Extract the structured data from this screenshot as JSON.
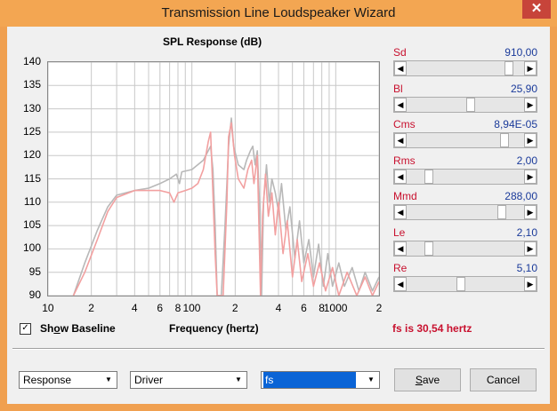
{
  "window": {
    "title": "Transmission Line Loudspeaker Wizard",
    "close_glyph": "✕"
  },
  "chart_data": {
    "type": "line",
    "title": "SPL Response (dB)",
    "xlabel": "Frequency (hertz)",
    "ylabel": "",
    "xscale": "log",
    "xlim": [
      10,
      2000
    ],
    "ylim": [
      90,
      140
    ],
    "y_ticks": [
      "140",
      "135",
      "130",
      "125",
      "120",
      "115",
      "110",
      "105",
      "100",
      "95",
      "90"
    ],
    "x_ticks": [
      "10",
      "2",
      "4",
      "6",
      "8",
      "100",
      "2",
      "4",
      "6",
      "8",
      "1000",
      "2"
    ],
    "grid": true,
    "series": [
      {
        "color": "#b8b8b8",
        "points": [
          [
            15,
            90
          ],
          [
            18,
            97
          ],
          [
            22,
            104
          ],
          [
            26,
            109
          ],
          [
            30,
            111.5
          ],
          [
            40,
            112.5
          ],
          [
            50,
            113
          ],
          [
            60,
            114
          ],
          [
            70,
            115
          ],
          [
            78,
            116
          ],
          [
            82,
            114
          ],
          [
            85,
            116.5
          ],
          [
            100,
            117
          ],
          [
            120,
            119
          ],
          [
            135,
            122
          ],
          [
            140,
            117
          ],
          [
            145,
            105
          ],
          [
            150,
            90
          ],
          [
            160,
            90
          ],
          [
            170,
            105
          ],
          [
            180,
            122
          ],
          [
            188,
            128
          ],
          [
            195,
            122
          ],
          [
            210,
            118
          ],
          [
            230,
            117
          ],
          [
            240,
            119
          ],
          [
            255,
            121
          ],
          [
            265,
            122
          ],
          [
            275,
            118
          ],
          [
            285,
            121
          ],
          [
            295,
            110
          ],
          [
            305,
            90
          ],
          [
            315,
            110
          ],
          [
            330,
            118
          ],
          [
            345,
            110
          ],
          [
            360,
            115
          ],
          [
            380,
            112
          ],
          [
            400,
            108
          ],
          [
            420,
            114
          ],
          [
            450,
            104
          ],
          [
            480,
            109
          ],
          [
            520,
            98
          ],
          [
            560,
            106
          ],
          [
            600,
            97
          ],
          [
            650,
            102
          ],
          [
            700,
            94
          ],
          [
            760,
            101
          ],
          [
            820,
            92
          ],
          [
            880,
            99
          ],
          [
            950,
            92
          ],
          [
            1050,
            97
          ],
          [
            1150,
            92
          ],
          [
            1300,
            96
          ],
          [
            1450,
            91
          ],
          [
            1600,
            95
          ],
          [
            1800,
            91
          ],
          [
            2000,
            94
          ]
        ]
      },
      {
        "color": "#f2a0a0",
        "points": [
          [
            15,
            90
          ],
          [
            18,
            95
          ],
          [
            22,
            102
          ],
          [
            26,
            108
          ],
          [
            30,
            111
          ],
          [
            40,
            112.5
          ],
          [
            60,
            112.5
          ],
          [
            70,
            112
          ],
          [
            75,
            110
          ],
          [
            80,
            112
          ],
          [
            90,
            112.5
          ],
          [
            100,
            113
          ],
          [
            110,
            114
          ],
          [
            120,
            117
          ],
          [
            130,
            123
          ],
          [
            135,
            125
          ],
          [
            140,
            112
          ],
          [
            145,
            99
          ],
          [
            150,
            90
          ],
          [
            165,
            90
          ],
          [
            175,
            110
          ],
          [
            180,
            124
          ],
          [
            188,
            127
          ],
          [
            198,
            120
          ],
          [
            210,
            115
          ],
          [
            230,
            113
          ],
          [
            245,
            117
          ],
          [
            260,
            119
          ],
          [
            270,
            114
          ],
          [
            285,
            120
          ],
          [
            300,
            90
          ],
          [
            310,
            107
          ],
          [
            325,
            116
          ],
          [
            340,
            107
          ],
          [
            360,
            112
          ],
          [
            380,
            103
          ],
          [
            400,
            110
          ],
          [
            430,
            99
          ],
          [
            460,
            106
          ],
          [
            500,
            94
          ],
          [
            540,
            102
          ],
          [
            580,
            93
          ],
          [
            640,
            99
          ],
          [
            700,
            92
          ],
          [
            770,
            97
          ],
          [
            850,
            91
          ],
          [
            950,
            96
          ],
          [
            1050,
            90
          ],
          [
            1200,
            95
          ],
          [
            1400,
            90
          ],
          [
            1600,
            94
          ],
          [
            1800,
            90
          ],
          [
            2000,
            93
          ]
        ]
      }
    ]
  },
  "params": [
    {
      "name": "Sd",
      "value": "910,00",
      "position": 0.9
    },
    {
      "name": "Bl",
      "value": "25,90",
      "position": 0.55
    },
    {
      "name": "Cms",
      "value": "8,94E-05",
      "position": 0.86
    },
    {
      "name": "Rms",
      "value": "2,00",
      "position": 0.16
    },
    {
      "name": "Mmd",
      "value": "288,00",
      "position": 0.84
    },
    {
      "name": "Le",
      "value": "2,10",
      "position": 0.16
    },
    {
      "name": "Re",
      "value": "5,10",
      "position": 0.46
    }
  ],
  "show_baseline": {
    "label_pre": "Sh",
    "label_underline": "o",
    "label_post": "w Baseline",
    "checked_glyph": "✓"
  },
  "fs_readout": "fs is 30,54 hertz",
  "bottom": {
    "select1": "Response",
    "select2": "Driver",
    "select3": "fs",
    "save_pre": "",
    "save_underline": "S",
    "save_post": "ave",
    "cancel": "Cancel",
    "dropdown_glyph": "▼"
  },
  "slider_arrows": {
    "left": "◀",
    "right": "▶"
  }
}
